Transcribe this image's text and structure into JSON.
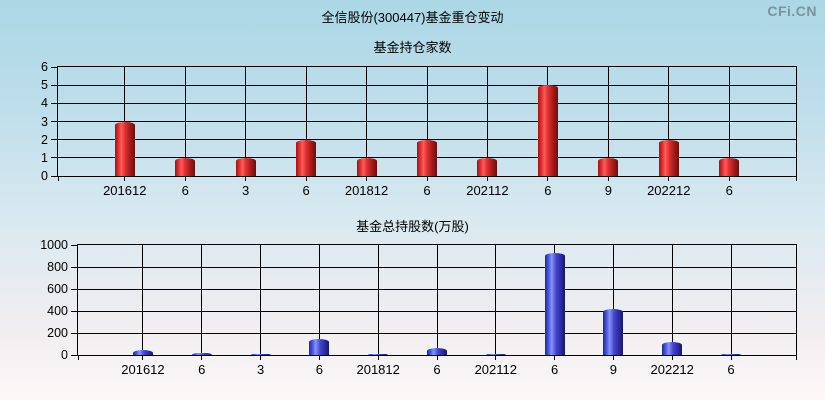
{
  "header": {
    "title": "全信股份(300447)基金重仓变动",
    "watermark": "CFi.CN"
  },
  "colors": {
    "background_top": "#abd7e6",
    "background_bottom": "#fbf8f8",
    "axis": "#000000",
    "grid": "#000000",
    "red_bar": "#e03030",
    "red_bar_dark": "#6a0e0e",
    "blue_bar": "#4f5fe8",
    "blue_bar_dark": "#17176e",
    "watermark": "#7e929c",
    "text": "#000000"
  },
  "chart_data": [
    {
      "type": "bar",
      "title": "基金持仓家数",
      "categories": [
        "201612",
        "6",
        "3",
        "6",
        "201812",
        "6",
        "202112",
        "6",
        "9",
        "202212",
        "6"
      ],
      "values": [
        3,
        1,
        1,
        2,
        1,
        2,
        1,
        5,
        1,
        2,
        1
      ],
      "xlabel": "",
      "ylabel": "",
      "ylim": [
        0,
        6
      ],
      "yticks": [
        0,
        1,
        2,
        3,
        4,
        5,
        6
      ],
      "bar_color": "red",
      "grid": "on",
      "legend": "none"
    },
    {
      "type": "bar",
      "title": "基金总持股数(万股)",
      "categories": [
        "201612",
        "6",
        "3",
        "6",
        "201812",
        "6",
        "202112",
        "6",
        "9",
        "202212",
        "6"
      ],
      "values": [
        45,
        20,
        8,
        150,
        8,
        60,
        5,
        930,
        420,
        120,
        6
      ],
      "xlabel": "",
      "ylabel": "",
      "ylim": [
        0,
        1000
      ],
      "yticks": [
        0,
        200,
        400,
        600,
        800,
        1000
      ],
      "bar_color": "blue",
      "grid": "on",
      "legend": "none"
    }
  ]
}
